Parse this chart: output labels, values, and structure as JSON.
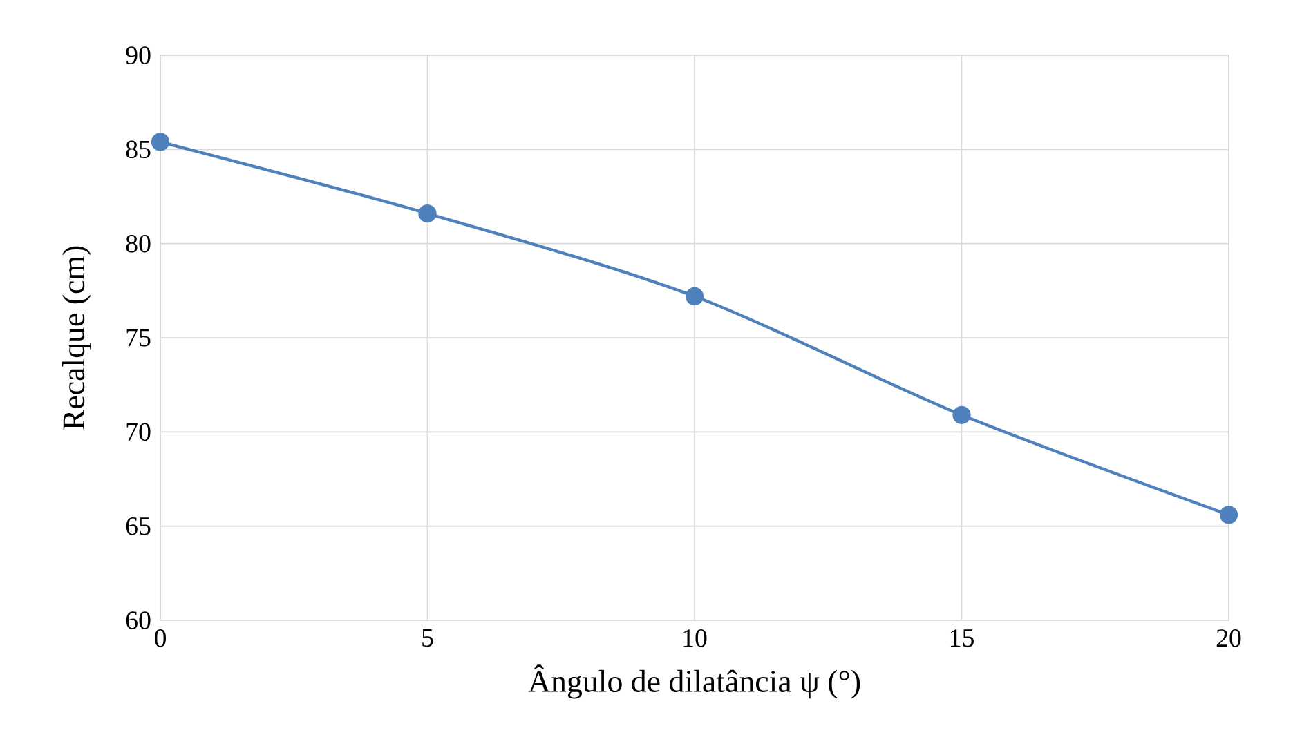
{
  "chart_data": {
    "type": "line",
    "xlabel": "Ângulo de dilatância ψ (°)",
    "ylabel": "Recalque (cm)",
    "x": [
      0,
      5,
      10,
      15,
      20
    ],
    "series": [
      {
        "color": "#4f81bd",
        "values": [
          85.4,
          81.6,
          77.2,
          70.9,
          65.6
        ]
      }
    ],
    "xlim": [
      0,
      20
    ],
    "xticks": [
      0,
      5,
      10,
      15,
      20
    ],
    "ylim": [
      60,
      90
    ],
    "yticks": [
      60,
      65,
      70,
      75,
      80,
      85,
      90
    ],
    "grid": true,
    "marker": "circle",
    "line_style": "solid"
  }
}
